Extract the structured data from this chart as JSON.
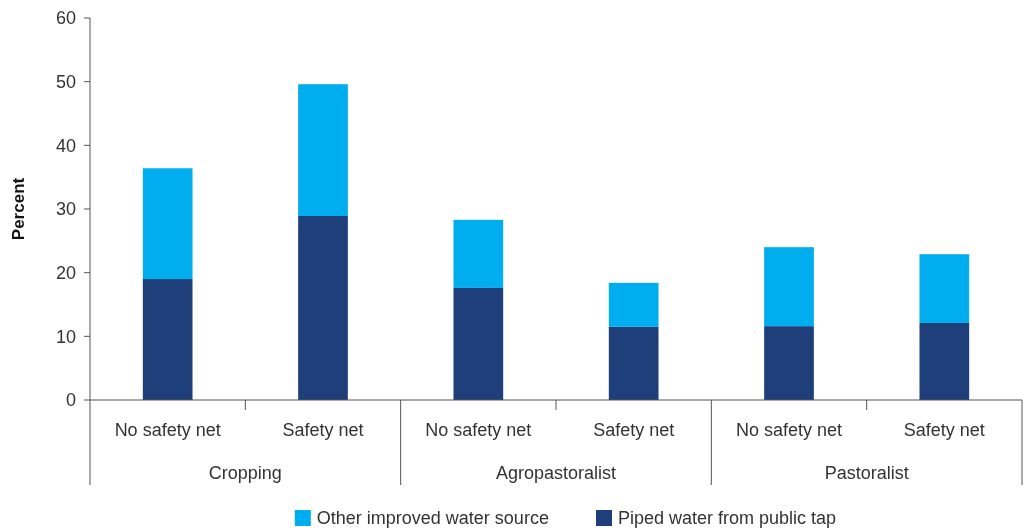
{
  "chart_data": {
    "type": "bar",
    "stacked": true,
    "ylabel": "Percent",
    "ylim": [
      0,
      60
    ],
    "yticks": [
      0,
      10,
      20,
      30,
      40,
      50,
      60
    ],
    "grid": false,
    "legend": "bottom",
    "categories": [
      "No safety net",
      "Safety net",
      "No safety net",
      "Safety net",
      "No safety net",
      "Safety net"
    ],
    "annotations": [
      "Cropping",
      "Agropastoralist",
      "Pastoralist"
    ],
    "series": [
      {
        "name": "Piped water from public tap",
        "color": "#1f3f7a",
        "values": [
          19.0,
          28.9,
          17.6,
          11.5,
          11.6,
          12.1
        ]
      },
      {
        "name": "Other improved water source",
        "color": "#00adee",
        "values": [
          17.4,
          20.7,
          10.7,
          6.9,
          12.4,
          10.8
        ]
      }
    ]
  }
}
